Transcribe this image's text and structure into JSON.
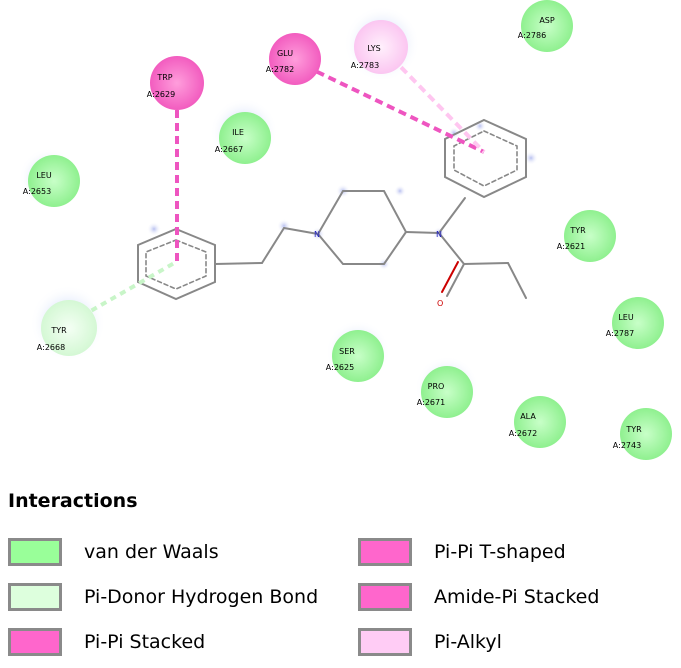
{
  "residues": [
    {
      "name": "ASP",
      "id": "A:2786",
      "type": "vdw"
    },
    {
      "name": "GLU",
      "id": "A:2782",
      "type": "pipi_t"
    },
    {
      "name": "LYS",
      "id": "A:2783",
      "type": "pialkyl"
    },
    {
      "name": "TRP",
      "id": "A:2629",
      "type": "pipi_stacked"
    },
    {
      "name": "ILE",
      "id": "A:2667",
      "type": "vdw"
    },
    {
      "name": "LEU",
      "id": "A:2653",
      "type": "vdw"
    },
    {
      "name": "TYR",
      "id": "A:2621",
      "type": "vdw"
    },
    {
      "name": "LEU",
      "id": "A:2787",
      "type": "vdw"
    },
    {
      "name": "TYR",
      "id": "A:2668",
      "type": "pidonor"
    },
    {
      "name": "SER",
      "id": "A:2625",
      "type": "vdw"
    },
    {
      "name": "PRO",
      "id": "A:2671",
      "type": "vdw"
    },
    {
      "name": "ALA",
      "id": "A:2672",
      "type": "vdw"
    },
    {
      "name": "TYR",
      "id": "A:2743",
      "type": "vdw"
    }
  ],
  "atom_labels": {
    "nitrogen": "N",
    "oxygen": "O"
  },
  "colors": {
    "vdw": "#99ff99",
    "pidonor": "#ddffdd",
    "pipi_stacked": "#ff66cc",
    "pipi_t": "#ff66cc",
    "amide_pi": "#ff66cc",
    "pialkyl": "#ffccf5",
    "bond": "#888888",
    "nitrogen": "#2020c0",
    "oxygen": "#cc0000"
  },
  "legend": {
    "title": "Interactions",
    "items": [
      {
        "label": "van der Waals",
        "color": "#99ff99"
      },
      {
        "label": "Pi-Donor Hydrogen Bond",
        "color": "#ddffdd"
      },
      {
        "label": "Pi-Pi Stacked",
        "color": "#ff66cc"
      },
      {
        "label": "Pi-Pi T-shaped",
        "color": "#ff66cc"
      },
      {
        "label": "Amide-Pi Stacked",
        "color": "#ff66cc"
      },
      {
        "label": "Pi-Alkyl",
        "color": "#ffccf5"
      }
    ]
  }
}
